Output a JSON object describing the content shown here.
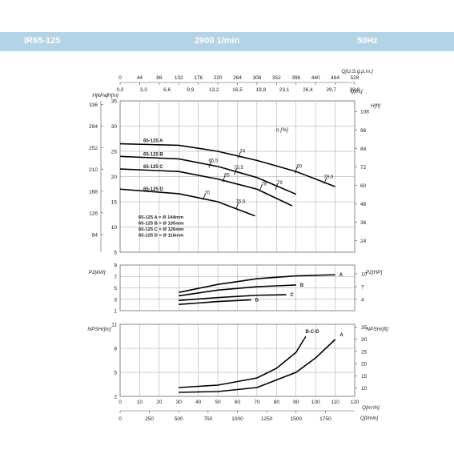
{
  "header": {
    "model": "IR65-125",
    "speed": "2900 1/min",
    "frequency": "50Hz"
  },
  "colors": {
    "header_bg": "#b3d3e6",
    "header_text": "#ffffff",
    "curve": "#000000",
    "grid": "#888888"
  },
  "chart_data": [
    {
      "id": "head",
      "type": "line",
      "left_axis_label_kpa": "H[kPa]",
      "left_axis_label_m": "H[m]",
      "right_axis_label": "H[ft]",
      "top_axis_label_gpm": "Q[U.S.g.p.m.]",
      "top_axis_label_ls": "Q[l/s]",
      "eff_label": "η [%]",
      "ylim": [
        5,
        35
      ],
      "kpa_ticks": [
        "336",
        "294",
        "252",
        "210",
        "168",
        "126",
        "84"
      ],
      "ft_ticks": [
        "108",
        "96",
        "84",
        "72",
        "60",
        "48",
        "36",
        "24"
      ],
      "m_ticks": [
        "35",
        "30",
        "25",
        "20",
        "15",
        "10",
        "5"
      ],
      "gpm_ticks": [
        "0",
        "44",
        "88",
        "132",
        "176",
        "220",
        "264",
        "308",
        "352",
        "396",
        "440",
        "484",
        "528"
      ],
      "ls_ticks": [
        "0,0",
        "3,3",
        "6,6",
        "9,9",
        "13,2",
        "16,5",
        "19,8",
        "23,1",
        "26,4",
        "29,7",
        "33,0"
      ],
      "series": [
        {
          "name": "65-125 A",
          "x": [
            0,
            30,
            50,
            70,
            90,
            110
          ],
          "y": [
            26.5,
            26.2,
            25,
            23.2,
            21,
            18
          ]
        },
        {
          "name": "65-125 B",
          "x": [
            0,
            30,
            50,
            70,
            90
          ],
          "y": [
            24,
            23.5,
            22,
            19.8,
            16.5
          ]
        },
        {
          "name": "65-125 C",
          "x": [
            0,
            30,
            50,
            70,
            88
          ],
          "y": [
            21.5,
            21,
            19.5,
            17.5,
            14.2
          ]
        },
        {
          "name": "65-125 D",
          "x": [
            0,
            30,
            50,
            69
          ],
          "y": [
            17.5,
            16.6,
            15,
            12.2
          ]
        }
      ],
      "efficiency_marks": [
        {
          "label": "65,5",
          "x": 46,
          "y": 22.4
        },
        {
          "label": "74",
          "x": 61,
          "y": 24.3
        },
        {
          "label": "80",
          "x": 90,
          "y": 21.3
        },
        {
          "label": "79,6",
          "x": 105,
          "y": 19.2
        },
        {
          "label": "70,5",
          "x": 59,
          "y": 21
        },
        {
          "label": "65",
          "x": 53,
          "y": 19.5
        },
        {
          "label": "78",
          "x": 72,
          "y": 17.8
        },
        {
          "label": "79",
          "x": 80,
          "y": 18
        },
        {
          "label": "70",
          "x": 43,
          "y": 16
        },
        {
          "label": "75,5",
          "x": 60,
          "y": 14.3
        }
      ],
      "legend": [
        "65-125 A = Ø 144mm",
        "65-125 B = Ø 135mm",
        "65-125 C = Ø 126mm",
        "65-125 D = Ø 116mm"
      ]
    },
    {
      "id": "power",
      "type": "line",
      "left_axis_label": "P2[kW]",
      "right_axis_label": "P2[HP]",
      "ylim": [
        1,
        9
      ],
      "y_ticks": [
        "9",
        "7",
        "5",
        "3",
        "1"
      ],
      "right_ticks": [
        "10",
        "7",
        "4"
      ],
      "series": [
        {
          "name": "A",
          "x": [
            30,
            50,
            70,
            90,
            110
          ],
          "y": [
            4.2,
            5.6,
            6.6,
            7.1,
            7.3
          ]
        },
        {
          "name": "B",
          "x": [
            30,
            50,
            70,
            90
          ],
          "y": [
            3.6,
            4.6,
            5.2,
            5.5
          ]
        },
        {
          "name": "C",
          "x": [
            30,
            50,
            70,
            85
          ],
          "y": [
            2.8,
            3.3,
            3.7,
            3.8
          ]
        },
        {
          "name": "D",
          "x": [
            30,
            50,
            67
          ],
          "y": [
            2.1,
            2.6,
            2.9
          ]
        }
      ]
    },
    {
      "id": "npsh",
      "type": "line",
      "left_axis_label": "NPSHr[m]",
      "right_axis_label": "NPSHr[ft]",
      "ylim": [
        2,
        11
      ],
      "y_ticks": [
        "11",
        "8",
        "5",
        "2"
      ],
      "right_ticks": [
        "35",
        "30",
        "25",
        "20",
        "15",
        "10"
      ],
      "bottom_axis_label_m3h": "Q[m³/h]",
      "bottom_axis_label_lmin": "Q[l/min]",
      "m3h_ticks": [
        "0",
        "10",
        "20",
        "30",
        "40",
        "50",
        "60",
        "70",
        "80",
        "90",
        "100",
        "110",
        "120"
      ],
      "lmin_ticks": [
        "0",
        "250",
        "500",
        "750",
        "1000",
        "1250",
        "1500",
        "1750"
      ],
      "series": [
        {
          "name": "B-C-D",
          "x": [
            30,
            50,
            70,
            80,
            90,
            95
          ],
          "y": [
            3.1,
            3.4,
            4.3,
            5.5,
            7.5,
            9.5
          ]
        },
        {
          "name": "A",
          "x": [
            30,
            50,
            70,
            90,
            100,
            110
          ],
          "y": [
            2.5,
            2.6,
            3.1,
            5,
            6.8,
            9.1
          ]
        }
      ]
    }
  ]
}
